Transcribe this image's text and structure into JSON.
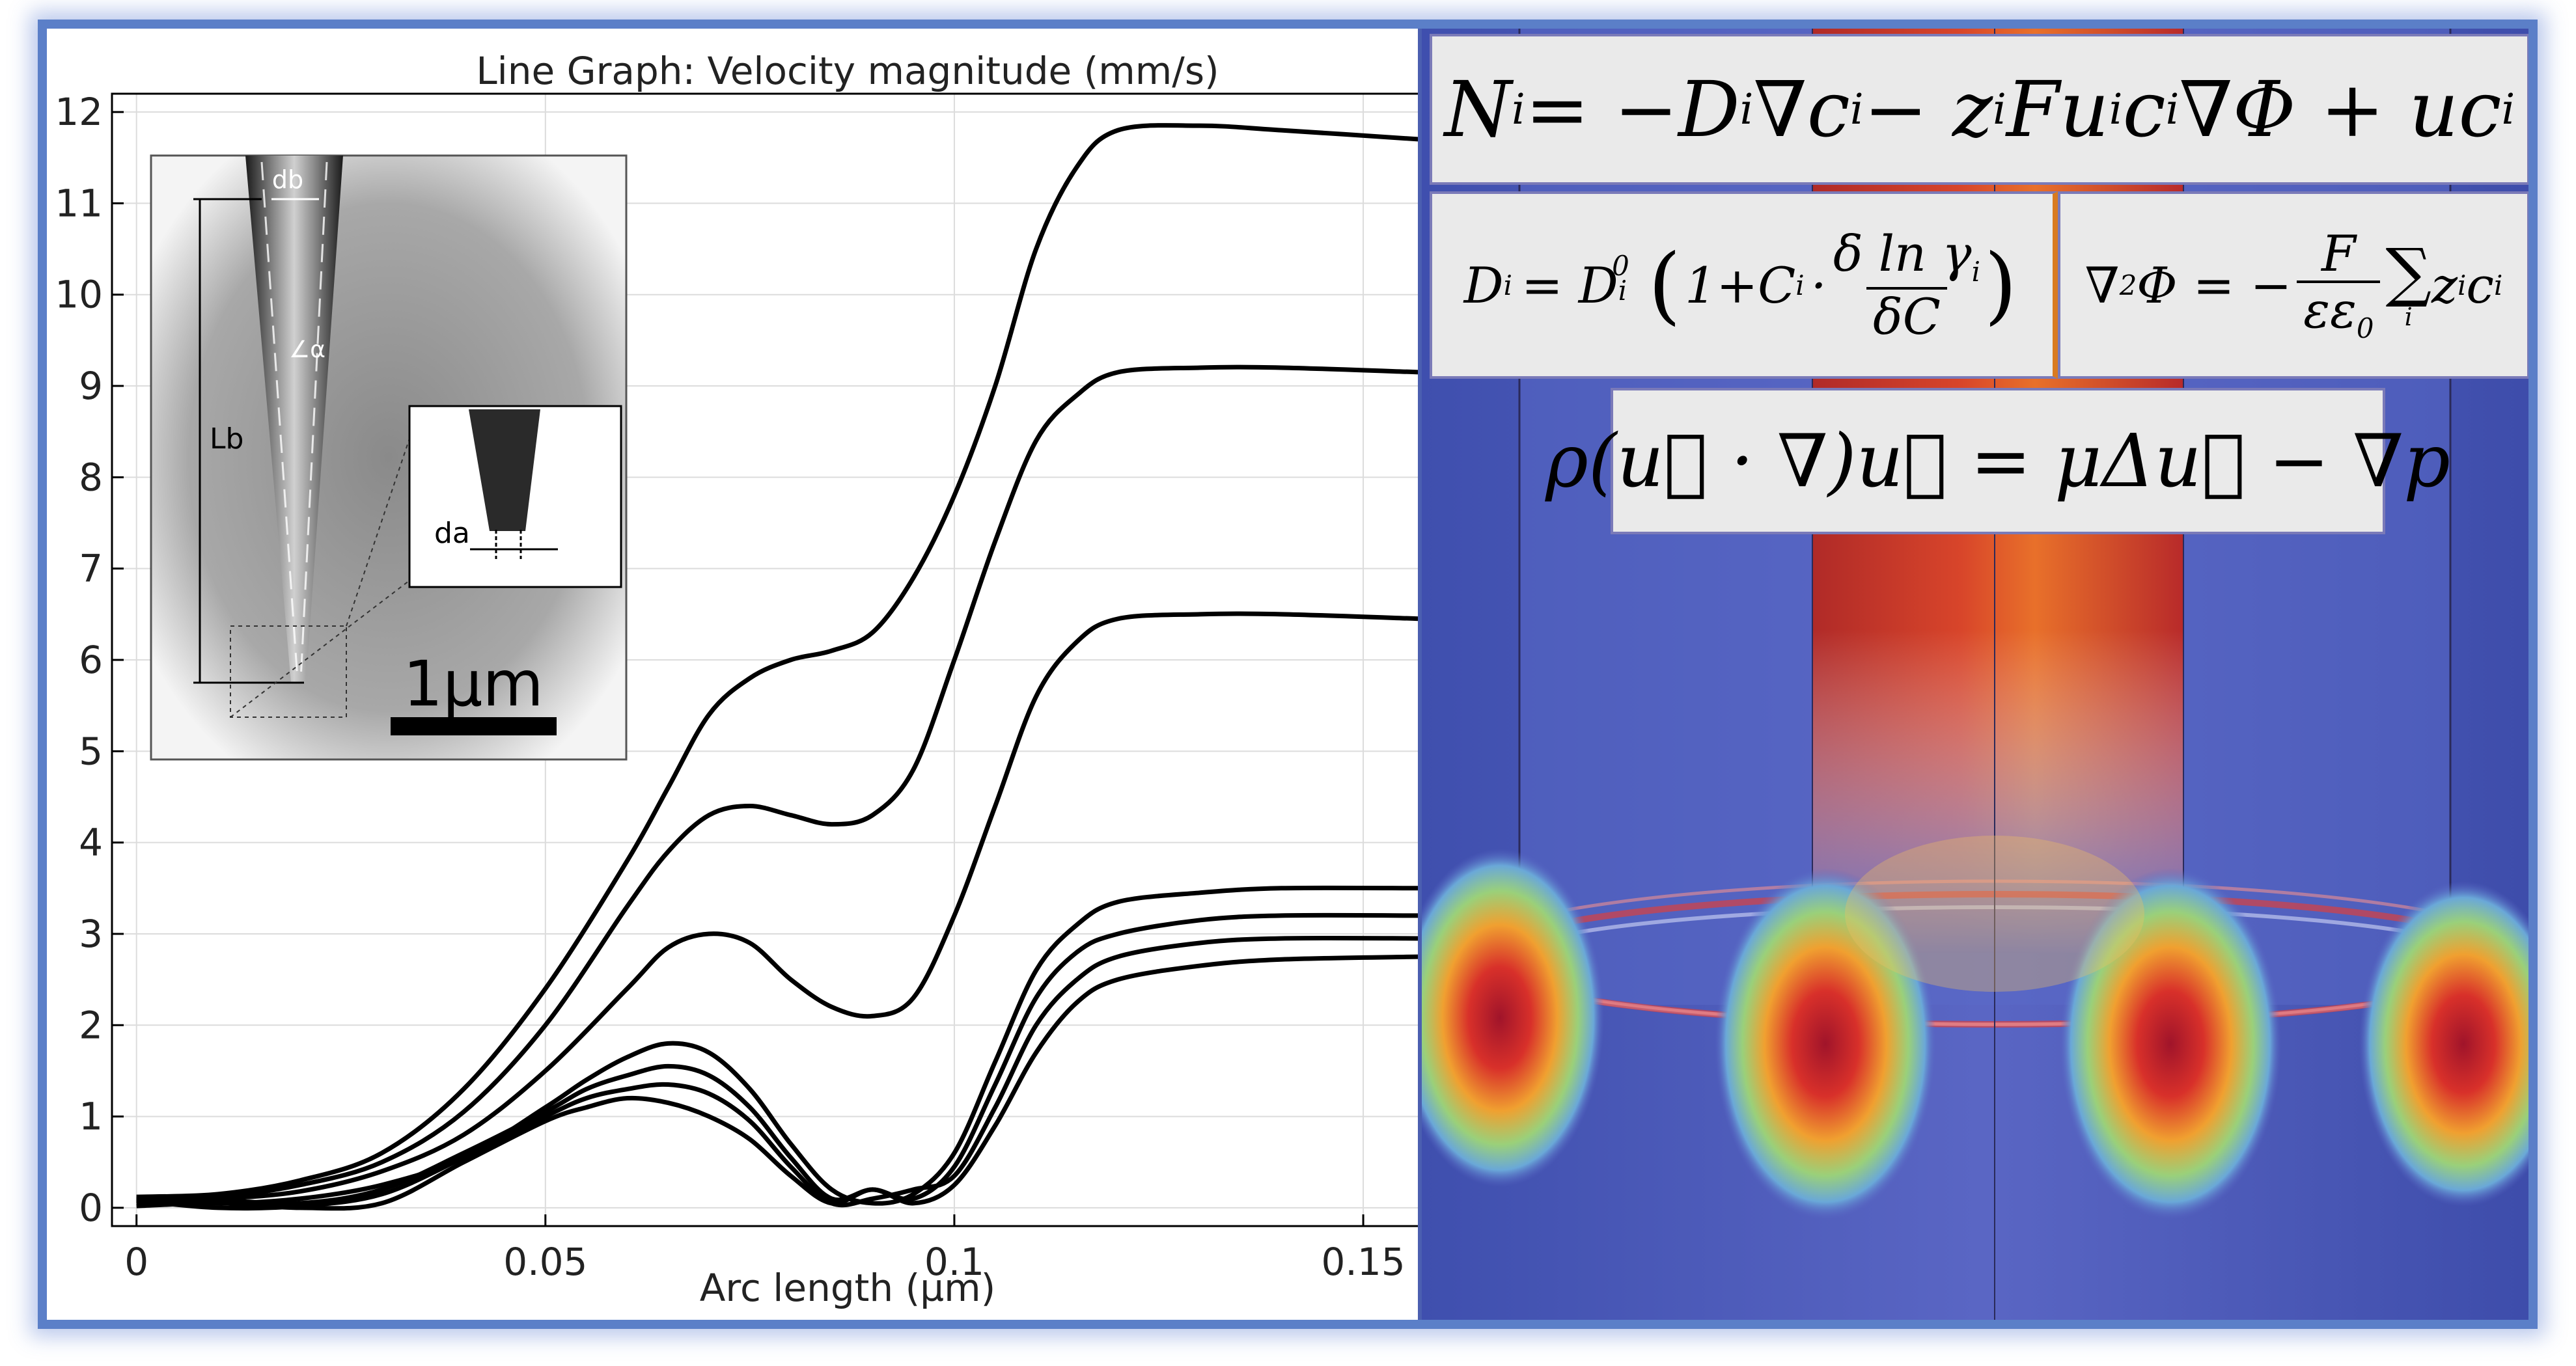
{
  "chart_data": {
    "type": "line",
    "title": "Line Graph: Velocity magnitude (mm/s)",
    "xlabel": "Arc length (µm)",
    "ylabel": "",
    "xlim": [
      -0.003,
      0.157
    ],
    "ylim": [
      -0.2,
      12.2
    ],
    "xticks": [
      0,
      0.05,
      0.1,
      0.15
    ],
    "xtick_labels": [
      "0",
      "0.05",
      "0.1",
      "0.15"
    ],
    "yticks": [
      0,
      1,
      2,
      3,
      4,
      5,
      6,
      7,
      8,
      9,
      10,
      11,
      12
    ],
    "grid": true,
    "series": [
      {
        "x": [
          0,
          0.01,
          0.02,
          0.03,
          0.04,
          0.05,
          0.06,
          0.065,
          0.07,
          0.075,
          0.08,
          0.085,
          0.09,
          0.095,
          0.1,
          0.105,
          0.11,
          0.115,
          0.12,
          0.13,
          0.14,
          0.157
        ],
        "values": [
          0.12,
          0.15,
          0.3,
          0.6,
          1.3,
          2.4,
          3.8,
          4.6,
          5.4,
          5.8,
          6.0,
          6.1,
          6.3,
          6.9,
          7.8,
          9.0,
          10.5,
          11.4,
          11.8,
          11.85,
          11.8,
          11.7
        ]
      },
      {
        "x": [
          0,
          0.01,
          0.02,
          0.03,
          0.04,
          0.05,
          0.06,
          0.065,
          0.07,
          0.075,
          0.08,
          0.085,
          0.09,
          0.095,
          0.1,
          0.105,
          0.11,
          0.115,
          0.12,
          0.13,
          0.14,
          0.157
        ],
        "values": [
          0.1,
          0.12,
          0.25,
          0.5,
          1.05,
          2.0,
          3.3,
          3.9,
          4.3,
          4.4,
          4.3,
          4.2,
          4.3,
          4.8,
          6.0,
          7.3,
          8.4,
          8.9,
          9.15,
          9.2,
          9.2,
          9.15
        ]
      },
      {
        "x": [
          0,
          0.01,
          0.02,
          0.03,
          0.04,
          0.05,
          0.06,
          0.065,
          0.07,
          0.075,
          0.08,
          0.085,
          0.09,
          0.095,
          0.1,
          0.105,
          0.11,
          0.115,
          0.12,
          0.13,
          0.14,
          0.157
        ],
        "values": [
          0.08,
          0.1,
          0.18,
          0.4,
          0.8,
          1.5,
          2.4,
          2.85,
          3.0,
          2.9,
          2.5,
          2.2,
          2.1,
          2.3,
          3.2,
          4.4,
          5.6,
          6.2,
          6.45,
          6.5,
          6.5,
          6.45
        ]
      },
      {
        "x": [
          0,
          0.01,
          0.02,
          0.03,
          0.04,
          0.05,
          0.055,
          0.06,
          0.065,
          0.07,
          0.075,
          0.08,
          0.085,
          0.09,
          0.095,
          0.1,
          0.105,
          0.11,
          0.115,
          0.12,
          0.13,
          0.14,
          0.157
        ],
        "values": [
          0.1,
          0.05,
          0.1,
          0.25,
          0.55,
          1.1,
          1.4,
          1.65,
          1.8,
          1.7,
          1.3,
          0.7,
          0.2,
          0.05,
          0.15,
          0.6,
          1.6,
          2.6,
          3.1,
          3.35,
          3.45,
          3.5,
          3.5
        ]
      },
      {
        "x": [
          0,
          0.01,
          0.02,
          0.03,
          0.04,
          0.05,
          0.055,
          0.06,
          0.065,
          0.07,
          0.075,
          0.08,
          0.085,
          0.09,
          0.095,
          0.1,
          0.105,
          0.11,
          0.115,
          0.12,
          0.13,
          0.14,
          0.157
        ],
        "values": [
          0.05,
          0.08,
          0.05,
          0.2,
          0.6,
          1.05,
          1.3,
          1.45,
          1.55,
          1.45,
          1.1,
          0.55,
          0.1,
          0.2,
          0.1,
          0.45,
          1.35,
          2.3,
          2.8,
          3.0,
          3.15,
          3.2,
          3.2
        ]
      },
      {
        "x": [
          0,
          0.01,
          0.02,
          0.03,
          0.04,
          0.05,
          0.055,
          0.06,
          0.065,
          0.07,
          0.075,
          0.08,
          0.085,
          0.09,
          0.095,
          0.1,
          0.105,
          0.11,
          0.115,
          0.12,
          0.13,
          0.14,
          0.157
        ],
        "values": [
          0.08,
          0.0,
          0.02,
          0.15,
          0.55,
          1.0,
          1.2,
          1.3,
          1.35,
          1.25,
          0.95,
          0.45,
          0.05,
          0.1,
          0.2,
          0.35,
          1.1,
          2.0,
          2.5,
          2.75,
          2.9,
          2.95,
          2.95
        ]
      },
      {
        "x": [
          0,
          0.01,
          0.02,
          0.03,
          0.04,
          0.05,
          0.055,
          0.06,
          0.065,
          0.07,
          0.075,
          0.08,
          0.085,
          0.09,
          0.095,
          0.1,
          0.105,
          0.11,
          0.115,
          0.12,
          0.13,
          0.14,
          0.157
        ],
        "values": [
          0.02,
          0.05,
          0.0,
          0.05,
          0.5,
          0.95,
          1.1,
          1.2,
          1.15,
          1.0,
          0.75,
          0.35,
          0.05,
          0.2,
          0.05,
          0.25,
          0.9,
          1.7,
          2.25,
          2.5,
          2.65,
          2.72,
          2.75
        ]
      }
    ]
  },
  "inset": {
    "label_db": "db",
    "label_alpha": "∠α",
    "label_lb": "Lb",
    "label_da": "da",
    "scale_bar": "1μm"
  },
  "equations": {
    "eq1_parts": [
      "N",
      "i",
      "= −D",
      "i",
      "∇c",
      "i",
      " − z",
      "i",
      "Fu",
      "i",
      "c",
      "i",
      "∇Φ + uc",
      "i"
    ],
    "eq2_parts": [
      "D",
      "i",
      "= D",
      "i",
      "0",
      "1+C",
      "i",
      "·",
      "δ ln γ",
      "i",
      "δC"
    ],
    "eq3_parts": [
      "∇",
      "2",
      "Φ = −",
      "F",
      "εε",
      "0",
      "∑",
      "i",
      "z",
      "i",
      "c",
      "i"
    ],
    "eq4_text": "ρ(u⃗ · ∇)u⃗ = μΔu⃗ − ∇p"
  },
  "colors": {
    "frame": "#5b7fc8",
    "line": "#000000",
    "grid": "#dcdcdc",
    "sim_bg": "#4a5bb8",
    "hot": "#c8202a",
    "divider_orange": "#d97a20"
  }
}
